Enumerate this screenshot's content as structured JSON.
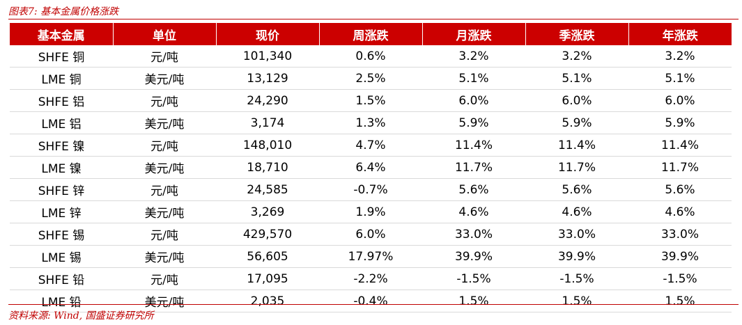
{
  "caption": "图表7:  基本金属价格涨跌",
  "source": "资料来源:  Wind,  国盛证券研究所",
  "colors": {
    "header_bg": "#cc0000",
    "up": "#e00000",
    "down": "#00a040",
    "accent": "#c00000"
  },
  "table": {
    "headers": [
      "基本金属",
      "单位",
      "现价",
      "周涨跌",
      "月涨跌",
      "季涨跌",
      "年涨跌"
    ],
    "rows": [
      {
        "metal": "SHFE 铜",
        "unit": "元/吨",
        "price": "101,340",
        "week": "0.6%",
        "month": "3.2%",
        "quarter": "3.2%",
        "year": "3.2%"
      },
      {
        "metal": "LME 铜",
        "unit": "美元/吨",
        "price": "13,129",
        "week": "2.5%",
        "month": "5.1%",
        "quarter": "5.1%",
        "year": "5.1%"
      },
      {
        "metal": "SHFE 铝",
        "unit": "元/吨",
        "price": "24,290",
        "week": "1.5%",
        "month": "6.0%",
        "quarter": "6.0%",
        "year": "6.0%"
      },
      {
        "metal": "LME 铝",
        "unit": "美元/吨",
        "price": "3,174",
        "week": "1.3%",
        "month": "5.9%",
        "quarter": "5.9%",
        "year": "5.9%"
      },
      {
        "metal": "SHFE 镍",
        "unit": "元/吨",
        "price": "148,010",
        "week": "4.7%",
        "month": "11.4%",
        "quarter": "11.4%",
        "year": "11.4%"
      },
      {
        "metal": "LME 镍",
        "unit": "美元/吨",
        "price": "18,710",
        "week": "6.4%",
        "month": "11.7%",
        "quarter": "11.7%",
        "year": "11.7%"
      },
      {
        "metal": "SHFE 锌",
        "unit": "元/吨",
        "price": "24,585",
        "week": "-0.7%",
        "month": "5.6%",
        "quarter": "5.6%",
        "year": "5.6%"
      },
      {
        "metal": "LME 锌",
        "unit": "美元/吨",
        "price": "3,269",
        "week": "1.9%",
        "month": "4.6%",
        "quarter": "4.6%",
        "year": "4.6%"
      },
      {
        "metal": "SHFE 锡",
        "unit": "元/吨",
        "price": "429,570",
        "week": "6.0%",
        "month": "33.0%",
        "quarter": "33.0%",
        "year": "33.0%"
      },
      {
        "metal": "LME 锡",
        "unit": "美元/吨",
        "price": "56,605",
        "week": "17.97%",
        "month": "39.9%",
        "quarter": "39.9%",
        "year": "39.9%"
      },
      {
        "metal": "SHFE 铅",
        "unit": "元/吨",
        "price": "17,095",
        "week": "-2.2%",
        "month": "-1.5%",
        "quarter": "-1.5%",
        "year": "-1.5%"
      },
      {
        "metal": "LME 铅",
        "unit": "美元/吨",
        "price": "2,035",
        "week": "-0.4%",
        "month": "1.5%",
        "quarter": "1.5%",
        "year": "1.5%"
      }
    ]
  }
}
